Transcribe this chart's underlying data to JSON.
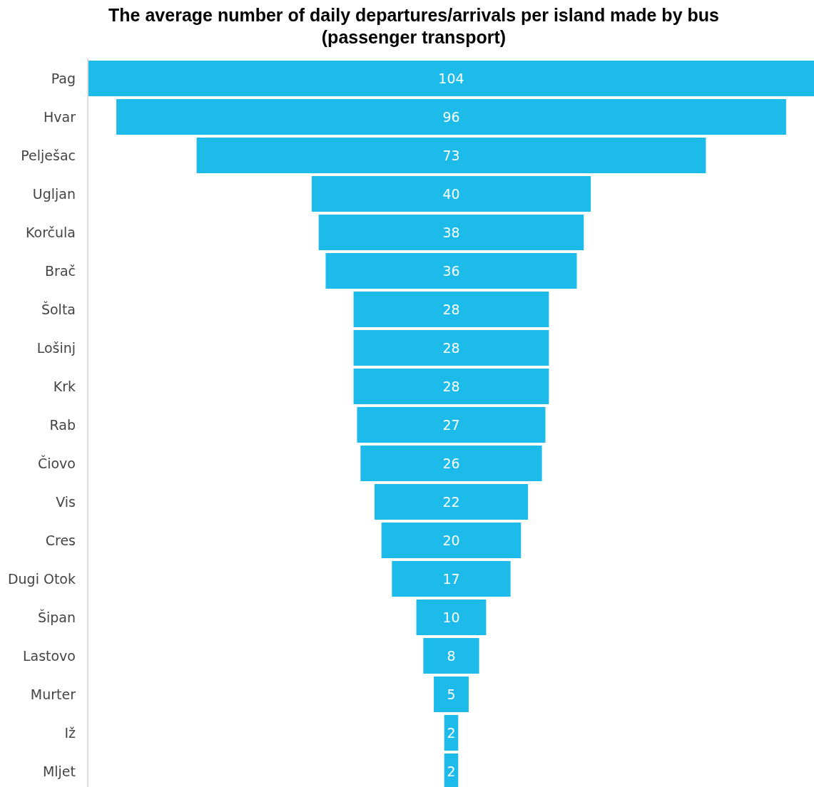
{
  "chart_data": {
    "type": "other",
    "title": "The average number of daily departures/arrivals per island made by bus (passenger transport)",
    "categories": [
      "Pag",
      "Hvar",
      "Pelješac",
      "Ugljan",
      "Korčula",
      "Brač",
      "Šolta",
      "Lošinj",
      "Krk",
      "Rab",
      "Čiovo",
      "Vis",
      "Cres",
      "Dugi Otok",
      "Šipan",
      "Lastovo",
      "Murter",
      "Iž",
      "Mljet"
    ],
    "values": [
      104,
      96,
      73,
      40,
      38,
      36,
      28,
      28,
      28,
      27,
      26,
      22,
      20,
      17,
      10,
      8,
      5,
      2,
      2
    ],
    "color": "#1cbbe9",
    "data_labels": true
  }
}
